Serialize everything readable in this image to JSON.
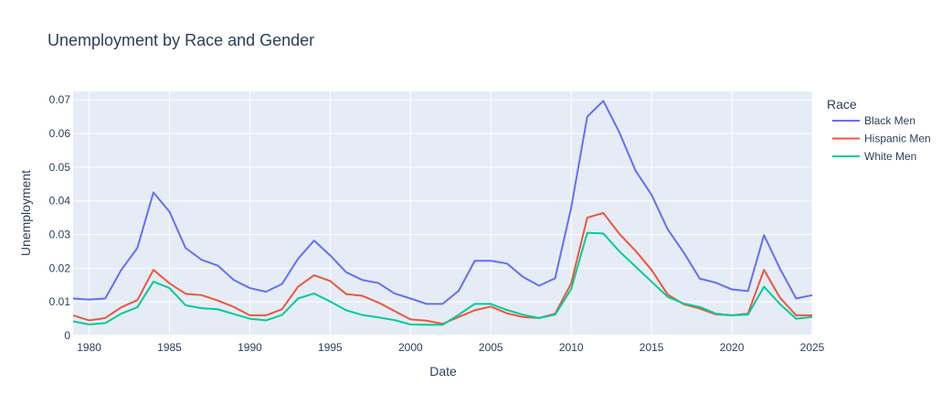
{
  "chart_data": {
    "type": "line",
    "title": "Unemployment by Race and Gender",
    "xlabel": "Date",
    "ylabel": "Unemployment",
    "legend_title": "Race",
    "legend_position": "right",
    "grid": true,
    "xlim": [
      1979,
      2025
    ],
    "ylim": [
      0,
      0.0725
    ],
    "x_ticks": [
      1980,
      1985,
      1990,
      1995,
      2000,
      2005,
      2010,
      2015,
      2020,
      2025
    ],
    "y_ticks": [
      0,
      0.01,
      0.02,
      0.03,
      0.04,
      0.05,
      0.06,
      0.07
    ],
    "y_tick_labels": [
      "0",
      "0.01",
      "0.02",
      "0.03",
      "0.04",
      "0.05",
      "0.06",
      "0.07"
    ],
    "x": [
      1979,
      1980,
      1981,
      1982,
      1983,
      1984,
      1985,
      1986,
      1987,
      1988,
      1989,
      1990,
      1991,
      1992,
      1993,
      1994,
      1995,
      1996,
      1997,
      1998,
      1999,
      2000,
      2001,
      2002,
      2003,
      2004,
      2005,
      2006,
      2007,
      2008,
      2009,
      2010,
      2011,
      2012,
      2013,
      2014,
      2015,
      2016,
      2017,
      2018,
      2019,
      2020,
      2021,
      2022,
      2023,
      2024,
      2025
    ],
    "series": [
      {
        "name": "Black Men",
        "color": "#636efa",
        "values": [
          0.011,
          0.0107,
          0.011,
          0.0195,
          0.026,
          0.0425,
          0.0368,
          0.026,
          0.0225,
          0.0208,
          0.0165,
          0.0141,
          0.013,
          0.0153,
          0.0228,
          0.0282,
          0.0238,
          0.0188,
          0.0165,
          0.0156,
          0.0125,
          0.011,
          0.0094,
          0.0094,
          0.0133,
          0.0222,
          0.0222,
          0.0214,
          0.0174,
          0.0148,
          0.017,
          0.038,
          0.065,
          0.0697,
          0.0603,
          0.049,
          0.0418,
          0.0316,
          0.0247,
          0.0169,
          0.0157,
          0.0137,
          0.0132,
          0.0298,
          0.0198,
          0.011,
          0.012
        ]
      },
      {
        "name": "Hispanic Men",
        "color": "#ef553b",
        "values": [
          0.006,
          0.0045,
          0.0052,
          0.0084,
          0.0105,
          0.0195,
          0.0155,
          0.0124,
          0.012,
          0.0104,
          0.0085,
          0.006,
          0.006,
          0.0078,
          0.0145,
          0.0179,
          0.0162,
          0.0123,
          0.0118,
          0.0098,
          0.0073,
          0.0048,
          0.0044,
          0.0035,
          0.0055,
          0.0075,
          0.0086,
          0.0066,
          0.0055,
          0.0052,
          0.0065,
          0.0155,
          0.035,
          0.0364,
          0.0302,
          0.0252,
          0.0195,
          0.0122,
          0.0093,
          0.008,
          0.0063,
          0.006,
          0.0065,
          0.0195,
          0.0112,
          0.006,
          0.006
        ]
      },
      {
        "name": "White Men",
        "color": "#00cc96",
        "values": [
          0.0042,
          0.0033,
          0.0037,
          0.0065,
          0.0084,
          0.016,
          0.0141,
          0.009,
          0.0081,
          0.0078,
          0.0064,
          0.005,
          0.0045,
          0.0061,
          0.011,
          0.0125,
          0.0101,
          0.0075,
          0.0061,
          0.0054,
          0.0046,
          0.0033,
          0.0032,
          0.0032,
          0.0062,
          0.0094,
          0.0094,
          0.0076,
          0.0062,
          0.0052,
          0.0062,
          0.0138,
          0.0305,
          0.0303,
          0.025,
          0.0205,
          0.016,
          0.0115,
          0.0095,
          0.0085,
          0.0065,
          0.006,
          0.0062,
          0.0145,
          0.0093,
          0.005,
          0.0055
        ]
      }
    ]
  }
}
